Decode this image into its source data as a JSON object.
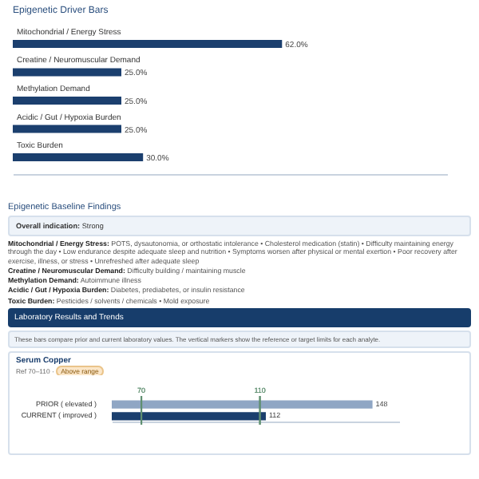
{
  "chart_data": [
    {
      "type": "bar",
      "title": "Epigenetic Driver Bars",
      "orientation": "horizontal",
      "categories": [
        "Mitochondrial / Energy Stress",
        "Creatine / Neuromuscular Demand",
        "Methylation Demand",
        "Acidic / Gut / Hypoxia Burden",
        "Toxic Burden"
      ],
      "values": [
        62,
        25,
        25,
        25,
        30
      ],
      "value_labels": [
        "62.0%",
        "25.0%",
        "25.0%",
        "25.0%",
        "30.0%"
      ],
      "color": "#1b3f6e",
      "xlim": [
        0,
        100
      ],
      "tick_labels": "y"
    },
    {
      "type": "other",
      "title": "Epigenetic Baseline Findings",
      "annotations": [
        "Overall indication: Strong",
        "Mitochondrial / Energy Stress: POTS, dysautonomia, or orthostatic intolerance • Cholesterol medication (statin) • Difficulty maintaining energy through the day • Low endurance despite adequate sleep and nutrition • Symptoms worsen after physical or mental exertion • Poor recovery after exercise, illness, or stress • Unrefreshed after adequate sleep",
        "Creatine / Neuromuscular Demand: Difficulty building / maintaining muscle",
        "Methylation Demand: Autoimmune illness",
        "Acidic / Gut / Hypoxia Burden: Diabetes, prediabetes, or insulin resistance",
        "Toxic Burden: Pesticides / solvents / chemicals • Mold exposure"
      ]
    },
    {
      "type": "bar",
      "title": "Laboratory Results and Trends",
      "subtitle": "These bars compare prior and current laboratory values. The vertical markers show the reference or target limits for each analyte.",
      "annotations": [
        "Serum Copper",
        "Ref 70–110 ·",
        "Above range"
      ],
      "orientation": "horizontal",
      "categories": [
        "PRIOR ( elevated )",
        "CURRENT ( improved )"
      ],
      "values": [
        148,
        112
      ],
      "colors": [
        "#8fa6c4",
        "#1b3f6e"
      ],
      "value_labels": [
        "148",
        "112"
      ],
      "xlim": [
        60,
        157
      ],
      "tick_labels": "y",
      "ref_lines": [
        {
          "axis": "x",
          "value": 70,
          "label": "70",
          "color": "#5f8f70"
        },
        {
          "axis": "x",
          "value": 110,
          "label": "110",
          "color": "#5f8f70"
        }
      ]
    }
  ]
}
